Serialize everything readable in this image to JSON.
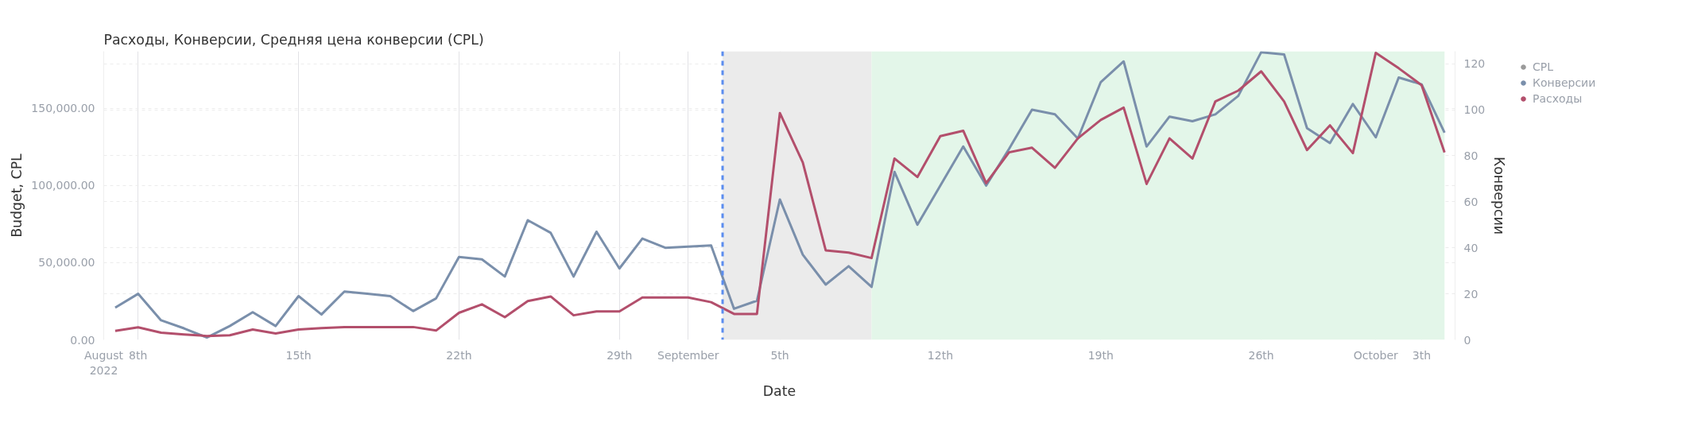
{
  "chart_data": {
    "type": "line",
    "title": "Расходы, Конверсии, Средняя цена конверсии (CPL)",
    "xlabel": "Date",
    "ylabel": "Budget, CPL",
    "y2label": "Конверсии",
    "x": [
      "2022-08-07",
      "2022-08-08",
      "2022-08-09",
      "2022-08-10",
      "2022-08-11",
      "2022-08-12",
      "2022-08-13",
      "2022-08-14",
      "2022-08-15",
      "2022-08-16",
      "2022-08-17",
      "2022-08-18",
      "2022-08-19",
      "2022-08-20",
      "2022-08-21",
      "2022-08-22",
      "2022-08-23",
      "2022-08-24",
      "2022-08-25",
      "2022-08-26",
      "2022-08-27",
      "2022-08-28",
      "2022-08-29",
      "2022-08-30",
      "2022-08-31",
      "2022-09-01",
      "2022-09-02",
      "2022-09-03",
      "2022-09-04",
      "2022-09-05",
      "2022-09-06",
      "2022-09-07",
      "2022-09-08",
      "2022-09-09",
      "2022-09-10",
      "2022-09-11",
      "2022-09-12",
      "2022-09-13",
      "2022-09-14",
      "2022-09-15",
      "2022-09-16",
      "2022-09-17",
      "2022-09-18",
      "2022-09-19",
      "2022-09-20",
      "2022-09-21",
      "2022-09-22",
      "2022-09-23",
      "2022-09-24",
      "2022-09-25",
      "2022-09-26",
      "2022-09-27",
      "2022-09-28",
      "2022-09-29",
      "2022-09-30",
      "2022-10-01",
      "2022-10-02",
      "2022-10-03",
      "2022-10-04"
    ],
    "series": [
      {
        "name": "CPL",
        "color": "#9a9a9a",
        "values": [
          null,
          null,
          null,
          null,
          null,
          null,
          null,
          null,
          null,
          null,
          null,
          null,
          null,
          null,
          null,
          null,
          null,
          null,
          null,
          null,
          null,
          null,
          null,
          null,
          null,
          null,
          null,
          null,
          null,
          null,
          null,
          null,
          null,
          null,
          null,
          null,
          null,
          null,
          null,
          null,
          null,
          null,
          null,
          null,
          null,
          null,
          null,
          null,
          null,
          null,
          null,
          null,
          null,
          null,
          null,
          null,
          null,
          null,
          null
        ]
      },
      {
        "name": "Конверсии",
        "color": "#7a8fab",
        "axis": "y2",
        "values": [
          14,
          20,
          8.5,
          5,
          1,
          6,
          12,
          6,
          19,
          11,
          21,
          20,
          19,
          12.5,
          18,
          36,
          35,
          27.5,
          52,
          46.5,
          27.5,
          47,
          31,
          44,
          40,
          40.5,
          41,
          13.5,
          17,
          61,
          37,
          24,
          32,
          23,
          73,
          50,
          67,
          84,
          67,
          83,
          100,
          98,
          87.5,
          112,
          121,
          84,
          97,
          95,
          98,
          106,
          125,
          124,
          92,
          85.5,
          102.5,
          88,
          114,
          111,
          90
        ]
      },
      {
        "name": "Расходы",
        "color": "#b34f6c",
        "values": [
          5800,
          8100,
          4600,
          3500,
          2500,
          3000,
          6700,
          4100,
          6700,
          7600,
          8300,
          8300,
          8300,
          8300,
          6000,
          17500,
          23000,
          14700,
          25100,
          28100,
          15900,
          18400,
          18400,
          27400,
          27400,
          27400,
          24400,
          16800,
          16800,
          147000,
          115000,
          58000,
          56500,
          53000,
          117500,
          105500,
          132000,
          135500,
          101500,
          121500,
          124500,
          111500,
          130500,
          142500,
          150500,
          101000,
          130500,
          117500,
          154500,
          161500,
          174000,
          154500,
          123000,
          139000,
          121000,
          186000,
          176000,
          165000,
          121500
        ]
      }
    ],
    "xlim": [
      "2022-08-06T12:00",
      "2022-10-04T11:00"
    ],
    "xticks": [
      {
        "value": "2022-08-06T12:00",
        "label": "August\n2022"
      },
      {
        "value": "2022-08-08",
        "label": "8th"
      },
      {
        "value": "2022-08-15",
        "label": "15th"
      },
      {
        "value": "2022-08-22",
        "label": "22th"
      },
      {
        "value": "2022-08-29",
        "label": "29th"
      },
      {
        "value": "2022-09-01",
        "label": "September"
      },
      {
        "value": "2022-09-05",
        "label": "5th"
      },
      {
        "value": "2022-09-12",
        "label": "12th"
      },
      {
        "value": "2022-09-19",
        "label": "19th"
      },
      {
        "value": "2022-09-26",
        "label": "26th"
      },
      {
        "value": "2022-10-01",
        "label": "October"
      },
      {
        "value": "2022-10-03",
        "label": "3th"
      }
    ],
    "ylim": [
      0,
      187000
    ],
    "yticks": [
      {
        "value": 0,
        "label": "0.00"
      },
      {
        "value": 50000,
        "label": "50,000.00"
      },
      {
        "value": 100000,
        "label": "100,000.00"
      },
      {
        "value": 150000,
        "label": "150,000.00"
      }
    ],
    "y2lim": [
      0,
      125.4
    ],
    "y2ticks": [
      0,
      20,
      40,
      60,
      80,
      100,
      120
    ],
    "ref_lines": [
      {
        "axis": "x",
        "value": "2022-09-02T12:00",
        "color": "#5b8def",
        "line_style": "dashed"
      }
    ],
    "bands": [
      {
        "axis": "x",
        "from": "2022-09-02T12:00",
        "to": "2022-09-09",
        "color": "#ebebeb"
      },
      {
        "axis": "x",
        "from": "2022-09-09",
        "to": "2022-10-04",
        "color": "#e3f6e9"
      }
    ],
    "grid": true,
    "legend": "top right",
    "line_style": "solid",
    "marker": "none"
  }
}
